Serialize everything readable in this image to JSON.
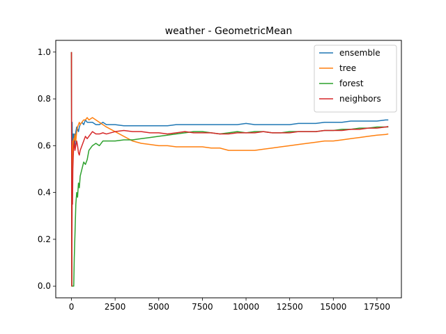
{
  "chart_data": {
    "type": "line",
    "title": "weather - GeometricMean",
    "xlabel": "",
    "ylabel": "",
    "xlim": [
      -900,
      18900
    ],
    "ylim": [
      -0.05,
      1.05
    ],
    "xticks": [
      0,
      2500,
      5000,
      7500,
      10000,
      12500,
      15000,
      17500
    ],
    "xtick_labels": [
      "0",
      "2500",
      "5000",
      "7500",
      "10000",
      "12500",
      "15000",
      "17500"
    ],
    "yticks": [
      0.0,
      0.2,
      0.4,
      0.6,
      0.8,
      1.0
    ],
    "ytick_labels": [
      "0.0",
      "0.2",
      "0.4",
      "0.6",
      "0.8",
      "1.0"
    ],
    "grid": false,
    "legend_position": "upper-right",
    "series": [
      {
        "name": "ensemble",
        "color": "#1f77b4",
        "x": [
          0,
          20,
          40,
          60,
          80,
          100,
          130,
          160,
          200,
          250,
          300,
          350,
          400,
          450,
          500,
          600,
          700,
          800,
          900,
          1000,
          1200,
          1400,
          1600,
          1800,
          2000,
          2500,
          3000,
          3500,
          4000,
          4500,
          5000,
          5500,
          6000,
          6500,
          7000,
          7500,
          8000,
          8500,
          9000,
          9500,
          10000,
          10500,
          11000,
          11500,
          12000,
          12500,
          13000,
          13500,
          14000,
          14500,
          15000,
          15500,
          16000,
          16500,
          17000,
          17500,
          18000,
          18150
        ],
        "y": [
          1.0,
          0.0,
          0.7,
          0.55,
          0.6,
          0.65,
          0.62,
          0.65,
          0.6,
          0.66,
          0.68,
          0.67,
          0.66,
          0.68,
          0.69,
          0.7,
          0.69,
          0.71,
          0.7,
          0.7,
          0.7,
          0.69,
          0.69,
          0.7,
          0.69,
          0.69,
          0.685,
          0.685,
          0.685,
          0.685,
          0.685,
          0.685,
          0.69,
          0.69,
          0.69,
          0.69,
          0.69,
          0.69,
          0.69,
          0.69,
          0.695,
          0.69,
          0.69,
          0.69,
          0.69,
          0.69,
          0.695,
          0.695,
          0.695,
          0.7,
          0.7,
          0.7,
          0.705,
          0.705,
          0.705,
          0.705,
          0.71,
          0.71
        ]
      },
      {
        "name": "tree",
        "color": "#ff7f0e",
        "x": [
          0,
          20,
          40,
          60,
          80,
          100,
          130,
          160,
          200,
          250,
          300,
          350,
          400,
          450,
          500,
          600,
          700,
          800,
          900,
          1000,
          1200,
          1400,
          1600,
          1800,
          2000,
          2500,
          3000,
          3500,
          4000,
          4500,
          5000,
          5500,
          6000,
          6500,
          7000,
          7500,
          8000,
          8500,
          9000,
          9500,
          10000,
          10500,
          11000,
          11500,
          12000,
          12500,
          13000,
          13500,
          14000,
          14500,
          15000,
          15500,
          16000,
          16500,
          17000,
          17500,
          18000,
          18150
        ],
        "y": [
          1.0,
          0.0,
          0.6,
          0.5,
          0.62,
          0.6,
          0.63,
          0.62,
          0.65,
          0.62,
          0.66,
          0.68,
          0.69,
          0.7,
          0.69,
          0.7,
          0.71,
          0.71,
          0.72,
          0.71,
          0.72,
          0.71,
          0.7,
          0.69,
          0.68,
          0.66,
          0.64,
          0.62,
          0.61,
          0.605,
          0.6,
          0.6,
          0.595,
          0.595,
          0.595,
          0.595,
          0.59,
          0.59,
          0.58,
          0.58,
          0.58,
          0.58,
          0.585,
          0.59,
          0.595,
          0.6,
          0.605,
          0.61,
          0.615,
          0.62,
          0.62,
          0.625,
          0.63,
          0.635,
          0.64,
          0.645,
          0.648,
          0.65
        ]
      },
      {
        "name": "forest",
        "color": "#2ca02c",
        "x": [
          0,
          20,
          40,
          60,
          80,
          100,
          130,
          160,
          200,
          250,
          300,
          350,
          400,
          450,
          500,
          600,
          700,
          800,
          900,
          1000,
          1200,
          1400,
          1600,
          1800,
          2000,
          2500,
          3000,
          3500,
          4000,
          4500,
          5000,
          5500,
          6000,
          6500,
          7000,
          7500,
          8000,
          8500,
          9000,
          9500,
          10000,
          10500,
          11000,
          11500,
          12000,
          12500,
          13000,
          13500,
          14000,
          14500,
          15000,
          15500,
          16000,
          16500,
          17000,
          17500,
          18000,
          18150
        ],
        "y": [
          1.0,
          0.0,
          0.0,
          0.0,
          0.0,
          0.0,
          0.0,
          0.12,
          0.22,
          0.35,
          0.4,
          0.38,
          0.44,
          0.42,
          0.47,
          0.5,
          0.53,
          0.52,
          0.54,
          0.58,
          0.6,
          0.61,
          0.6,
          0.62,
          0.62,
          0.62,
          0.625,
          0.625,
          0.63,
          0.635,
          0.64,
          0.645,
          0.65,
          0.655,
          0.66,
          0.66,
          0.655,
          0.65,
          0.655,
          0.66,
          0.655,
          0.66,
          0.66,
          0.655,
          0.655,
          0.66,
          0.66,
          0.66,
          0.66,
          0.665,
          0.665,
          0.67,
          0.67,
          0.675,
          0.675,
          0.68,
          0.68,
          0.68
        ]
      },
      {
        "name": "neighbors",
        "color": "#d62728",
        "x": [
          0,
          20,
          40,
          60,
          80,
          100,
          130,
          160,
          200,
          250,
          300,
          350,
          400,
          450,
          500,
          600,
          700,
          800,
          900,
          1000,
          1200,
          1400,
          1600,
          1800,
          2000,
          2500,
          3000,
          3500,
          4000,
          4500,
          5000,
          5500,
          6000,
          6500,
          7000,
          7500,
          8000,
          8500,
          9000,
          9500,
          10000,
          10500,
          11000,
          11500,
          12000,
          12500,
          13000,
          13500,
          14000,
          14500,
          15000,
          15500,
          16000,
          16500,
          17000,
          17500,
          18000,
          18150
        ],
        "y": [
          1.0,
          0.0,
          0.45,
          0.35,
          0.5,
          0.55,
          0.6,
          0.62,
          0.58,
          0.6,
          0.62,
          0.6,
          0.57,
          0.56,
          0.58,
          0.6,
          0.62,
          0.64,
          0.63,
          0.64,
          0.66,
          0.65,
          0.65,
          0.655,
          0.65,
          0.66,
          0.665,
          0.66,
          0.66,
          0.655,
          0.655,
          0.65,
          0.655,
          0.66,
          0.655,
          0.655,
          0.655,
          0.65,
          0.65,
          0.655,
          0.655,
          0.655,
          0.66,
          0.655,
          0.655,
          0.655,
          0.66,
          0.66,
          0.66,
          0.665,
          0.665,
          0.665,
          0.67,
          0.67,
          0.675,
          0.675,
          0.68,
          0.682
        ]
      }
    ]
  }
}
